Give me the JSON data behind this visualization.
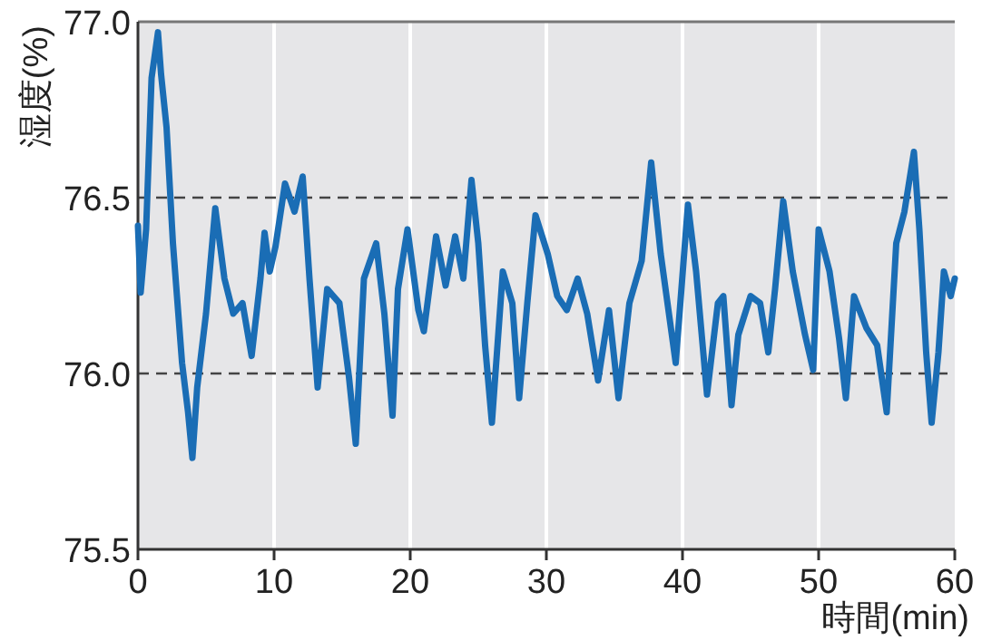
{
  "chart_data": {
    "type": "line",
    "xlabel": "時間(min)",
    "ylabel": "湿度(%)",
    "xlim": [
      0,
      60
    ],
    "ylim": [
      75.5,
      77.0
    ],
    "xticks": [
      0,
      10,
      20,
      30,
      40,
      50,
      60
    ],
    "yticks": [
      75.5,
      {
        "value": 76,
        "label": "76.0"
      },
      76.5,
      {
        "value": 77,
        "label": "77.0"
      }
    ],
    "grid": true,
    "series": [
      {
        "color": "#1a6db5",
        "x": [
          0,
          0.2,
          0.6,
          1.0,
          1.47,
          1.7,
          2.1,
          2.57,
          3.24,
          3.68,
          4.0,
          4.35,
          5.0,
          5.68,
          6.35,
          7.0,
          7.68,
          8.35,
          9.0,
          9.3,
          9.68,
          10.1,
          10.8,
          11.5,
          12.1,
          12.6,
          13.2,
          13.9,
          14.8,
          15.5,
          16.0,
          16.6,
          17.5,
          18.1,
          18.7,
          19.1,
          19.8,
          20.6,
          21.0,
          21.9,
          22.6,
          23.3,
          23.9,
          24.5,
          25.0,
          25.5,
          26.0,
          26.8,
          27.5,
          28.0,
          28.6,
          29.2,
          30.1,
          30.8,
          31.5,
          32.3,
          33.0,
          33.8,
          34.6,
          35.3,
          36.1,
          37.0,
          37.7,
          38.4,
          39.5,
          40.4,
          41.0,
          41.8,
          42.6,
          43.0,
          43.6,
          44.1,
          45.0,
          45.7,
          46.3,
          46.8,
          47.4,
          48.1,
          49.0,
          49.6,
          50.0,
          50.8,
          51.5,
          52.0,
          52.6,
          53.5,
          54.3,
          55.0,
          55.7,
          56.3,
          57.0,
          57.4,
          57.9,
          58.3,
          58.8,
          59.2,
          59.7,
          60
        ],
        "values": [
          76.42,
          76.23,
          76.41,
          76.84,
          76.97,
          76.85,
          76.7,
          76.37,
          76.03,
          75.89,
          75.76,
          75.96,
          76.17,
          76.47,
          76.27,
          76.17,
          76.2,
          76.05,
          76.27,
          76.4,
          76.29,
          76.36,
          76.54,
          76.46,
          76.56,
          76.27,
          75.96,
          76.24,
          76.2,
          75.99,
          75.8,
          76.27,
          76.37,
          76.17,
          75.88,
          76.24,
          76.41,
          76.18,
          76.12,
          76.39,
          76.25,
          76.39,
          76.27,
          76.55,
          76.37,
          76.08,
          75.86,
          76.29,
          76.2,
          75.93,
          76.2,
          76.45,
          76.34,
          76.22,
          76.18,
          76.27,
          76.17,
          75.98,
          76.18,
          75.93,
          76.2,
          76.32,
          76.6,
          76.34,
          76.03,
          76.48,
          76.29,
          75.94,
          76.2,
          76.22,
          75.91,
          76.11,
          76.22,
          76.2,
          76.06,
          76.24,
          76.49,
          76.29,
          76.11,
          76.01,
          76.41,
          76.29,
          76.1,
          75.93,
          76.22,
          76.13,
          76.08,
          75.89,
          76.37,
          76.46,
          76.63,
          76.41,
          76.06,
          75.86,
          76.06,
          76.29,
          76.22,
          76.27
        ]
      }
    ]
  }
}
